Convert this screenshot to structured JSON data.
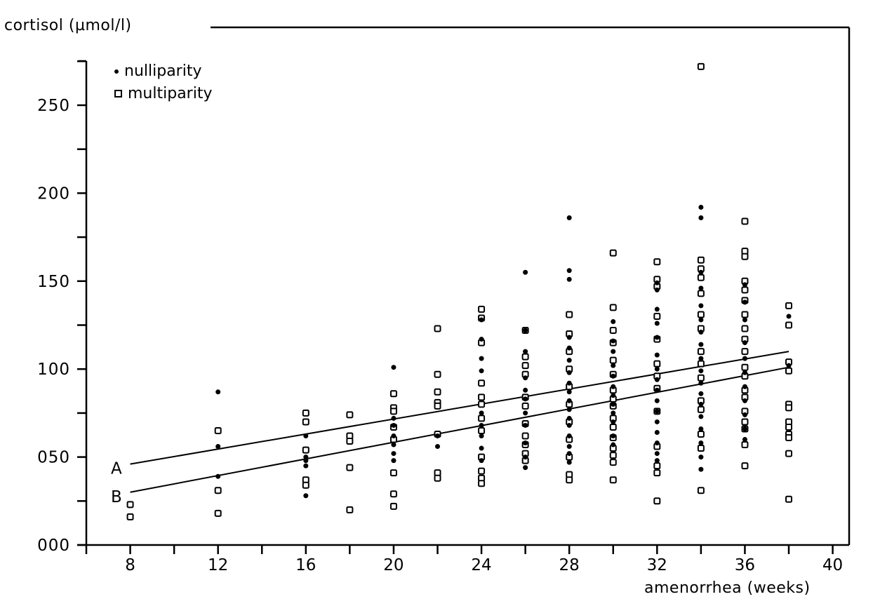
{
  "chart_data": {
    "type": "scatter",
    "title": "",
    "ylabel": "cortisol (µmol/l)",
    "xlabel": "amenorrhea (weeks)",
    "xlim": [
      6,
      40.8
    ],
    "ylim": [
      0,
      275
    ],
    "x_ticks": [
      8,
      12,
      16,
      20,
      24,
      28,
      32,
      36,
      40
    ],
    "x_minor_ticks": [
      6,
      10,
      14,
      18,
      22,
      26,
      30,
      34,
      38
    ],
    "y_ticks": [
      0,
      50,
      100,
      150,
      200,
      250
    ],
    "y_tick_labels": [
      "000",
      "050",
      "100",
      "150",
      "200",
      "250"
    ],
    "y_minor_ticks": [
      25,
      75,
      125,
      175,
      225,
      275
    ],
    "grid": false,
    "legend": {
      "position": "upper-left",
      "entries": [
        {
          "label": "nulliparity",
          "marker": "filled-dot"
        },
        {
          "label": "multiparity",
          "marker": "open-square"
        }
      ]
    },
    "regression_lines": [
      {
        "name": "A",
        "x": [
          8,
          38
        ],
        "y": [
          46,
          110
        ]
      },
      {
        "name": "B",
        "x": [
          8,
          38
        ],
        "y": [
          30,
          101
        ]
      }
    ],
    "series": [
      {
        "name": "nulliparity",
        "marker": "filled-dot",
        "points": [
          [
            12,
            87
          ],
          [
            12,
            56
          ],
          [
            12,
            39
          ],
          [
            16,
            62
          ],
          [
            16,
            50
          ],
          [
            16,
            48
          ],
          [
            16,
            45
          ],
          [
            16,
            28
          ],
          [
            20,
            101
          ],
          [
            20,
            72
          ],
          [
            20,
            68
          ],
          [
            20,
            62
          ],
          [
            20,
            57
          ],
          [
            20,
            52
          ],
          [
            20,
            48
          ],
          [
            22,
            62
          ],
          [
            22,
            56
          ],
          [
            24,
            128
          ],
          [
            24,
            117
          ],
          [
            24,
            106
          ],
          [
            24,
            99
          ],
          [
            24,
            75
          ],
          [
            24,
            68
          ],
          [
            24,
            62
          ],
          [
            24,
            55
          ],
          [
            24,
            48
          ],
          [
            26,
            155
          ],
          [
            26,
            122
          ],
          [
            26,
            110
          ],
          [
            26,
            95
          ],
          [
            26,
            88
          ],
          [
            26,
            83
          ],
          [
            26,
            75
          ],
          [
            26,
            68
          ],
          [
            26,
            58
          ],
          [
            26,
            50
          ],
          [
            26,
            44
          ],
          [
            28,
            186
          ],
          [
            28,
            156
          ],
          [
            28,
            151
          ],
          [
            28,
            118
          ],
          [
            28,
            112
          ],
          [
            28,
            105
          ],
          [
            28,
            98
          ],
          [
            28,
            92
          ],
          [
            28,
            87
          ],
          [
            28,
            82
          ],
          [
            28,
            77
          ],
          [
            28,
            72
          ],
          [
            28,
            68
          ],
          [
            28,
            62
          ],
          [
            28,
            56
          ],
          [
            28,
            52
          ],
          [
            28,
            47
          ],
          [
            30,
            127
          ],
          [
            30,
            116
          ],
          [
            30,
            110
          ],
          [
            30,
            102
          ],
          [
            30,
            96
          ],
          [
            30,
            90
          ],
          [
            30,
            85
          ],
          [
            30,
            80
          ],
          [
            30,
            75
          ],
          [
            30,
            70
          ],
          [
            30,
            62
          ],
          [
            30,
            57
          ],
          [
            32,
            149
          ],
          [
            32,
            145
          ],
          [
            32,
            134
          ],
          [
            32,
            126
          ],
          [
            32,
            118
          ],
          [
            32,
            108
          ],
          [
            32,
            100
          ],
          [
            32,
            94
          ],
          [
            32,
            88
          ],
          [
            32,
            82
          ],
          [
            32,
            76
          ],
          [
            32,
            70
          ],
          [
            32,
            64
          ],
          [
            32,
            58
          ],
          [
            32,
            52
          ],
          [
            32,
            48
          ],
          [
            34,
            192
          ],
          [
            34,
            186
          ],
          [
            34,
            155
          ],
          [
            34,
            146
          ],
          [
            34,
            136
          ],
          [
            34,
            128
          ],
          [
            34,
            121
          ],
          [
            34,
            114
          ],
          [
            34,
            106
          ],
          [
            34,
            99
          ],
          [
            34,
            92
          ],
          [
            34,
            86
          ],
          [
            34,
            80
          ],
          [
            34,
            73
          ],
          [
            34,
            66
          ],
          [
            34,
            58
          ],
          [
            34,
            50
          ],
          [
            34,
            43
          ],
          [
            36,
            148
          ],
          [
            36,
            138
          ],
          [
            36,
            128
          ],
          [
            36,
            115
          ],
          [
            36,
            106
          ],
          [
            36,
            98
          ],
          [
            36,
            90
          ],
          [
            36,
            82
          ],
          [
            36,
            74
          ],
          [
            36,
            66
          ],
          [
            36,
            60
          ],
          [
            38,
            130
          ],
          [
            38,
            102
          ]
        ]
      },
      {
        "name": "multiparity",
        "marker": "open-square",
        "points": [
          [
            8,
            23
          ],
          [
            8,
            16
          ],
          [
            12,
            65
          ],
          [
            12,
            31
          ],
          [
            12,
            18
          ],
          [
            16,
            75
          ],
          [
            16,
            70
          ],
          [
            16,
            54
          ],
          [
            16,
            37
          ],
          [
            16,
            34
          ],
          [
            18,
            74
          ],
          [
            18,
            62
          ],
          [
            18,
            59
          ],
          [
            18,
            44
          ],
          [
            18,
            20
          ],
          [
            20,
            86
          ],
          [
            20,
            78
          ],
          [
            20,
            76
          ],
          [
            20,
            67
          ],
          [
            20,
            60
          ],
          [
            20,
            41
          ],
          [
            20,
            29
          ],
          [
            20,
            22
          ],
          [
            22,
            123
          ],
          [
            22,
            97
          ],
          [
            22,
            87
          ],
          [
            22,
            81
          ],
          [
            22,
            79
          ],
          [
            22,
            63
          ],
          [
            22,
            41
          ],
          [
            22,
            38
          ],
          [
            24,
            134
          ],
          [
            24,
            129
          ],
          [
            24,
            115
          ],
          [
            24,
            92
          ],
          [
            24,
            84
          ],
          [
            24,
            80
          ],
          [
            24,
            72
          ],
          [
            24,
            65
          ],
          [
            24,
            50
          ],
          [
            24,
            42
          ],
          [
            24,
            38
          ],
          [
            24,
            35
          ],
          [
            26,
            122
          ],
          [
            26,
            107
          ],
          [
            26,
            102
          ],
          [
            26,
            97
          ],
          [
            26,
            84
          ],
          [
            26,
            79
          ],
          [
            26,
            69
          ],
          [
            26,
            62
          ],
          [
            26,
            57
          ],
          [
            26,
            52
          ],
          [
            26,
            48
          ],
          [
            28,
            131
          ],
          [
            28,
            120
          ],
          [
            28,
            110
          ],
          [
            28,
            100
          ],
          [
            28,
            90
          ],
          [
            28,
            80
          ],
          [
            28,
            70
          ],
          [
            28,
            60
          ],
          [
            28,
            50
          ],
          [
            28,
            40
          ],
          [
            28,
            37
          ],
          [
            30,
            166
          ],
          [
            30,
            135
          ],
          [
            30,
            122
          ],
          [
            30,
            115
          ],
          [
            30,
            105
          ],
          [
            30,
            97
          ],
          [
            30,
            88
          ],
          [
            30,
            83
          ],
          [
            30,
            79
          ],
          [
            30,
            72
          ],
          [
            30,
            67
          ],
          [
            30,
            61
          ],
          [
            30,
            55
          ],
          [
            30,
            51
          ],
          [
            30,
            47
          ],
          [
            30,
            37
          ],
          [
            32,
            161
          ],
          [
            32,
            151
          ],
          [
            32,
            147
          ],
          [
            32,
            130
          ],
          [
            32,
            117
          ],
          [
            32,
            103
          ],
          [
            32,
            96
          ],
          [
            32,
            89
          ],
          [
            32,
            76
          ],
          [
            32,
            56
          ],
          [
            32,
            45
          ],
          [
            32,
            41
          ],
          [
            32,
            25
          ],
          [
            34,
            272
          ],
          [
            34,
            162
          ],
          [
            34,
            157
          ],
          [
            34,
            152
          ],
          [
            34,
            143
          ],
          [
            34,
            131
          ],
          [
            34,
            123
          ],
          [
            34,
            110
          ],
          [
            34,
            103
          ],
          [
            34,
            95
          ],
          [
            34,
            82
          ],
          [
            34,
            77
          ],
          [
            34,
            63
          ],
          [
            34,
            55
          ],
          [
            34,
            31
          ],
          [
            36,
            184
          ],
          [
            36,
            167
          ],
          [
            36,
            164
          ],
          [
            36,
            150
          ],
          [
            36,
            145
          ],
          [
            36,
            139
          ],
          [
            36,
            131
          ],
          [
            36,
            123
          ],
          [
            36,
            117
          ],
          [
            36,
            110
          ],
          [
            36,
            101
          ],
          [
            36,
            96
          ],
          [
            36,
            88
          ],
          [
            36,
            84
          ],
          [
            36,
            76
          ],
          [
            36,
            70
          ],
          [
            36,
            66
          ],
          [
            36,
            57
          ],
          [
            36,
            45
          ],
          [
            38,
            136
          ],
          [
            38,
            125
          ],
          [
            38,
            104
          ],
          [
            38,
            99
          ],
          [
            38,
            80
          ],
          [
            38,
            78
          ],
          [
            38,
            70
          ],
          [
            38,
            67
          ],
          [
            38,
            63
          ],
          [
            38,
            61
          ],
          [
            38,
            52
          ],
          [
            38,
            26
          ]
        ]
      }
    ]
  },
  "labels": {
    "y_axis_title": "cortisol (µmol/l)",
    "x_axis_title": "amenorrhea (weeks)",
    "legend_nulliparity": "nulliparity",
    "legend_multiparity": "multiparity",
    "line_a": "A",
    "line_b": "B"
  }
}
